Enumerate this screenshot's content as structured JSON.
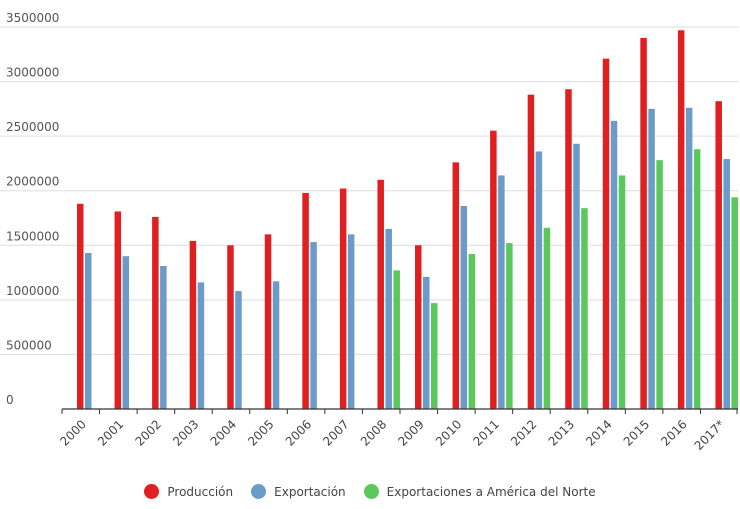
{
  "chart_data": {
    "type": "bar",
    "categories": [
      "2000",
      "2001",
      "2002",
      "2003",
      "2004",
      "2005",
      "2006",
      "2007",
      "2008",
      "2009",
      "2010",
      "2011",
      "2012",
      "2013",
      "2014",
      "2015",
      "2016",
      "2017*"
    ],
    "series": [
      {
        "name": "Producción",
        "color": "#e02020",
        "values": [
          1880000,
          1810000,
          1760000,
          1540000,
          1500000,
          1600000,
          1980000,
          2020000,
          2100000,
          1500000,
          2260000,
          2550000,
          2880000,
          2930000,
          3210000,
          3400000,
          3470000,
          2820000
        ]
      },
      {
        "name": "Exportación",
        "color": "#6b9bc8",
        "values": [
          1430000,
          1400000,
          1310000,
          1160000,
          1080000,
          1170000,
          1530000,
          1600000,
          1650000,
          1210000,
          1860000,
          2140000,
          2360000,
          2430000,
          2640000,
          2750000,
          2760000,
          2290000
        ]
      },
      {
        "name": "Exportaciones a América del Norte",
        "color": "#5cc85c",
        "values": [
          null,
          null,
          null,
          null,
          null,
          null,
          null,
          null,
          1270000,
          970000,
          1420000,
          1520000,
          1660000,
          1840000,
          2140000,
          2280000,
          2380000,
          1940000
        ]
      }
    ],
    "y_ticks": [
      "0",
      "500000",
      "1000000",
      "1500000",
      "2000000",
      "2500000",
      "3000000",
      "3500000"
    ],
    "ylim": [
      0,
      3500000
    ],
    "grid": true,
    "legend_position": "bottom-center",
    "title": "",
    "xlabel": "",
    "ylabel": ""
  }
}
